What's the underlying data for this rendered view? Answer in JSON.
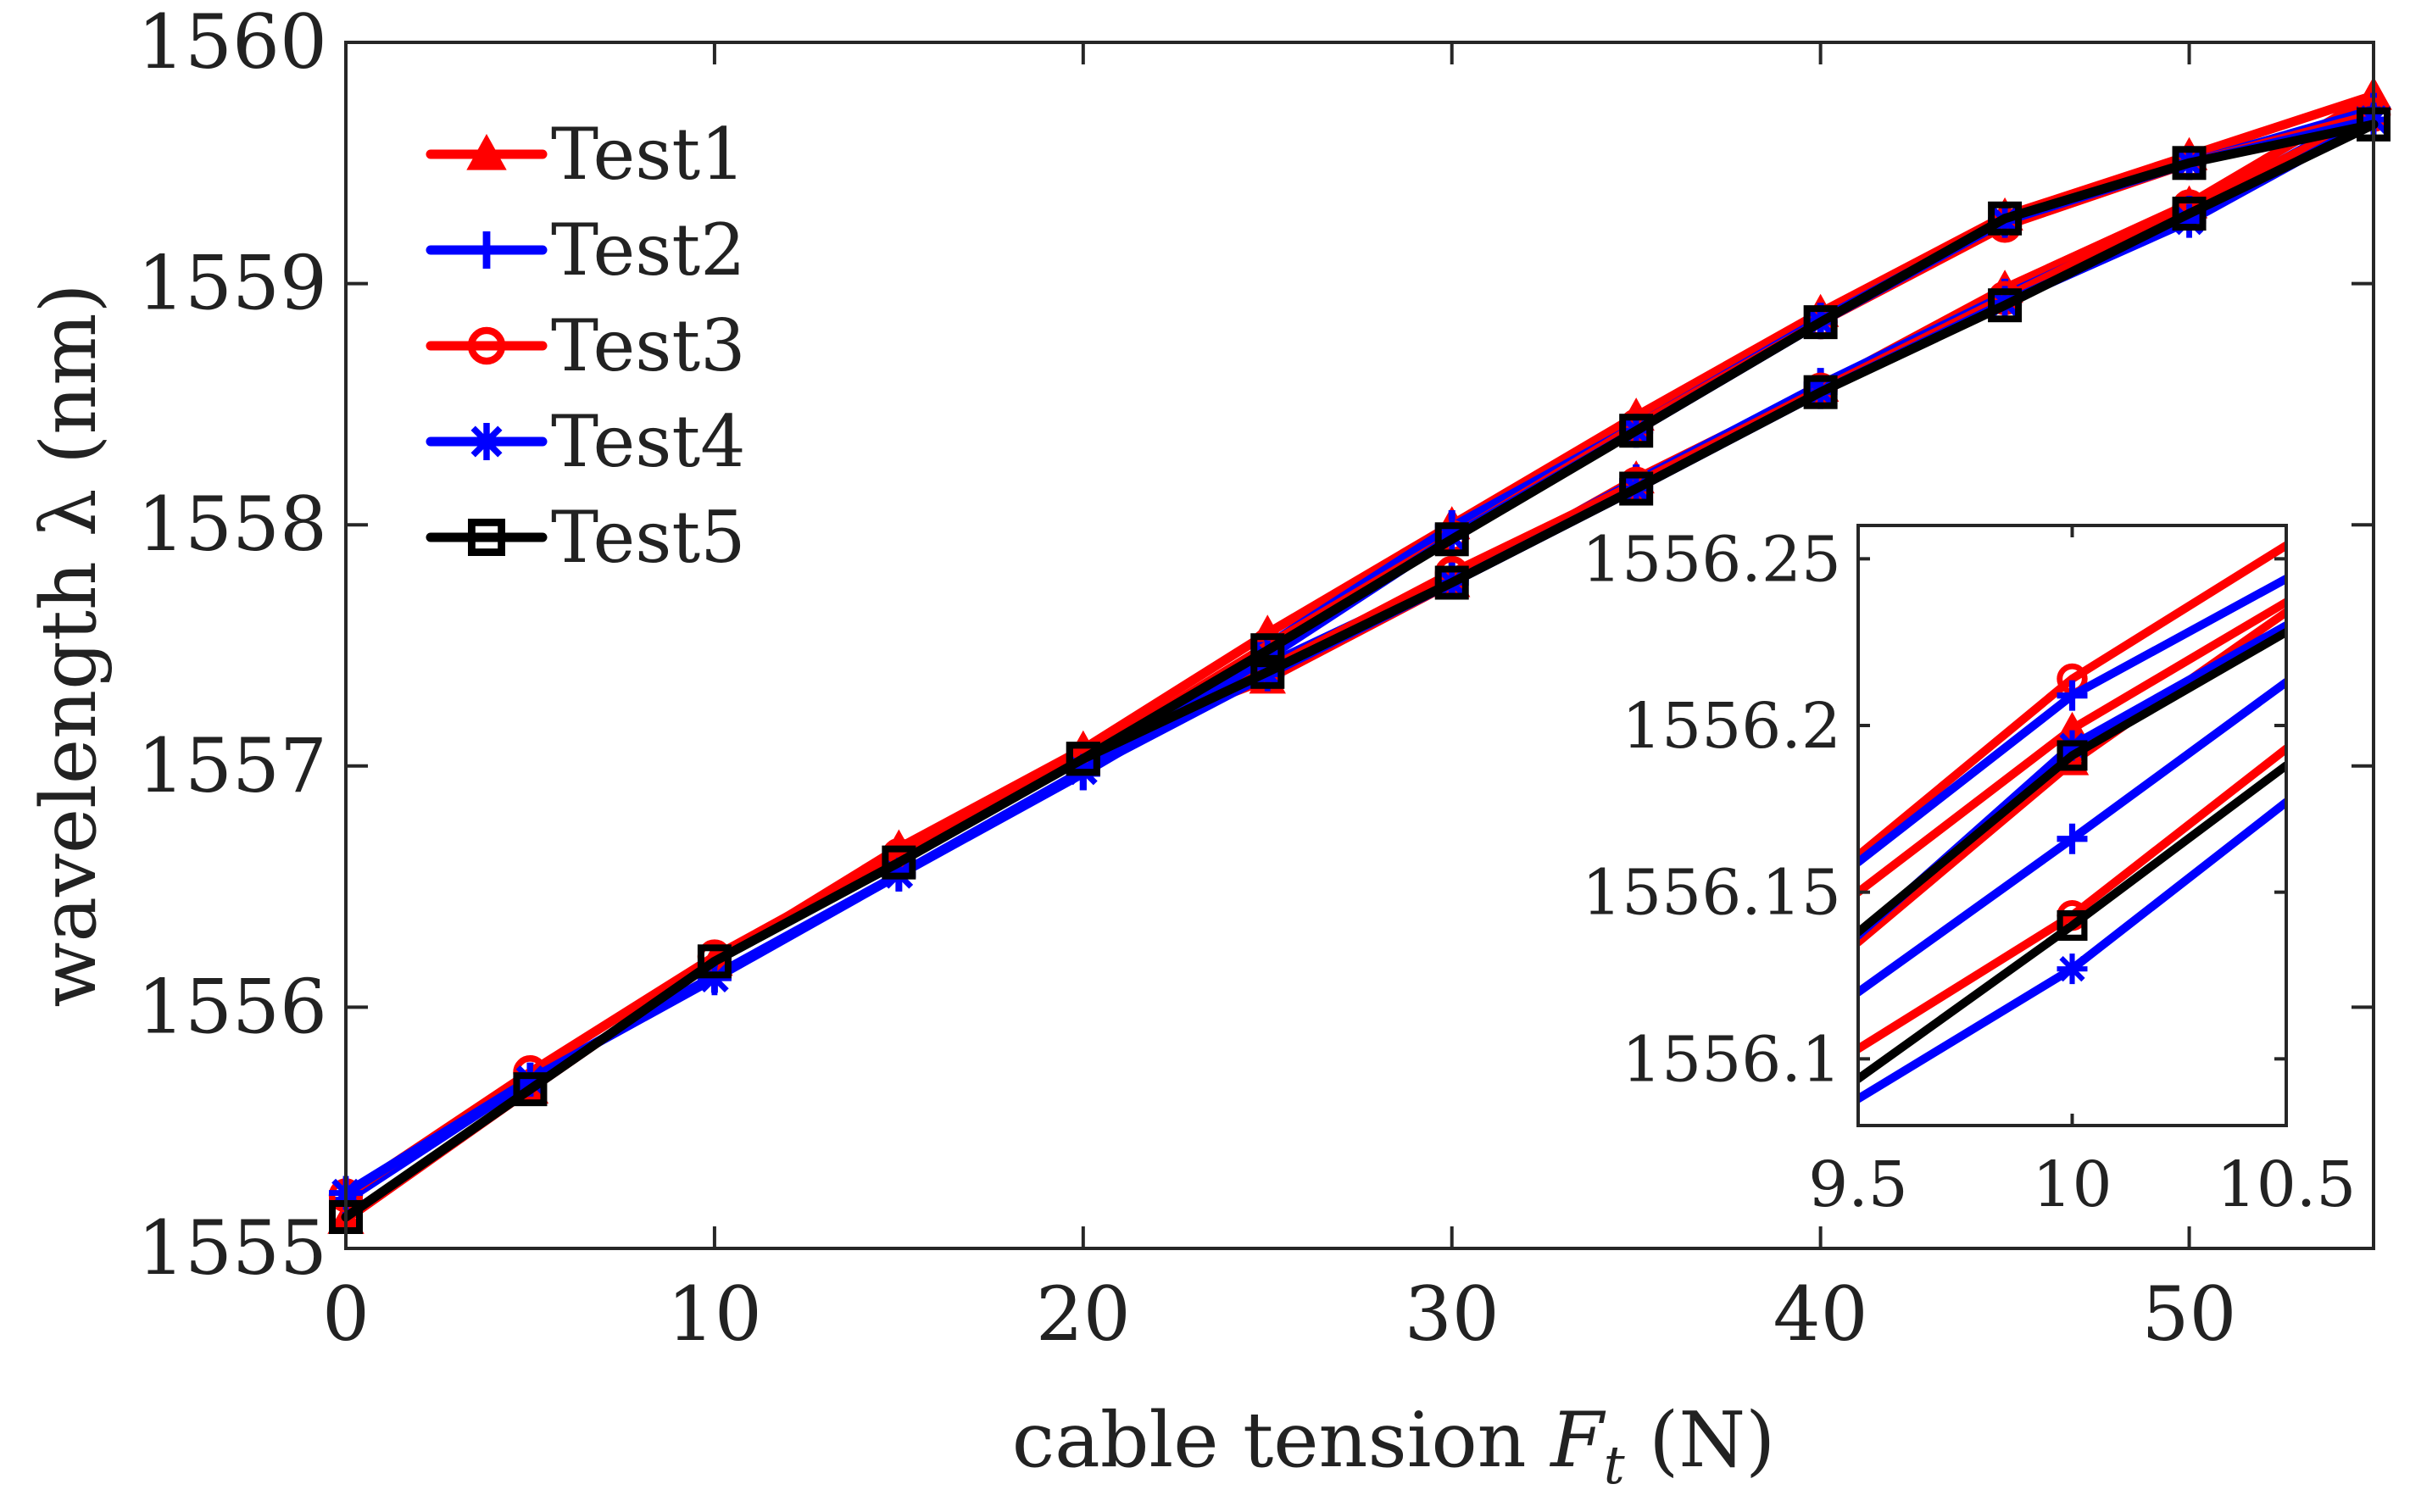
{
  "chart_data": [
    {
      "type": "line",
      "title": "",
      "xlabel": "cable tension F_t (N)",
      "xlabel_parts": {
        "prefix": "cable tension ",
        "var": "F",
        "sub": "t",
        "suffix": " (N)"
      },
      "ylabel": "wavelength λ (nm)",
      "xlim": [
        0,
        55
      ],
      "ylim": [
        1555,
        1560
      ],
      "xticks": [
        0,
        10,
        20,
        30,
        40,
        50
      ],
      "yticks": [
        1555,
        1556,
        1557,
        1558,
        1559,
        1560
      ],
      "legend_position": "top-left",
      "grid": false,
      "series": [
        {
          "name": "Test1",
          "color": "#ff0000",
          "marker": "triangle",
          "loading": {
            "x": [
              0,
              5,
              10,
              15,
              20,
              25,
              30,
              35,
              40,
              45,
              50,
              55
            ],
            "y": [
              1555.12,
              1555.66,
              1556.19,
              1556.66,
              1557.07,
              1557.55,
              1558.0,
              1558.45,
              1558.88,
              1559.28,
              1559.53,
              1559.78
            ]
          },
          "unloading": {
            "x": [
              55,
              50,
              45,
              40,
              35,
              30,
              25,
              20
            ],
            "y": [
              1559.78,
              1559.33,
              1558.98,
              1558.57,
              1558.19,
              1557.76,
              1557.36,
              1557.07
            ]
          }
        },
        {
          "name": "Test2",
          "color": "#0000ff",
          "marker": "plus",
          "loading": {
            "x": [
              0,
              5,
              10,
              15,
              20,
              25,
              30,
              35,
              40,
              45,
              50,
              55
            ],
            "y": [
              1555.2,
              1555.7,
              1556.13,
              1556.55,
              1556.97,
              1557.5,
              1557.99,
              1558.41,
              1558.85,
              1559.26,
              1559.5,
              1559.72
            ]
          },
          "unloading": {
            "x": [
              55,
              50,
              45,
              40,
              35,
              30,
              25,
              20
            ],
            "y": [
              1559.72,
              1559.3,
              1558.95,
              1558.58,
              1558.18,
              1557.78,
              1557.42,
              1556.97
            ]
          }
        },
        {
          "name": "Test3",
          "color": "#ff0000",
          "marker": "circle",
          "loading": {
            "x": [
              0,
              5,
              10,
              15,
              20,
              25,
              30,
              35,
              40,
              45,
              50,
              55
            ],
            "y": [
              1555.22,
              1555.73,
              1556.21,
              1556.63,
              1557.03,
              1557.5,
              1557.95,
              1558.41,
              1558.84,
              1559.24,
              1559.5,
              1559.7
            ]
          },
          "unloading": {
            "x": [
              55,
              50,
              45,
              40,
              35,
              30,
              25,
              20
            ],
            "y": [
              1559.7,
              1559.32,
              1558.94,
              1558.56,
              1558.17,
              1557.8,
              1557.4,
              1557.03
            ]
          }
        },
        {
          "name": "Test4",
          "color": "#0000ff",
          "marker": "asterisk",
          "loading": {
            "x": [
              0,
              5,
              10,
              15,
              20,
              25,
              30,
              35,
              40,
              45,
              50,
              55
            ],
            "y": [
              1555.23,
              1555.7,
              1556.12,
              1556.55,
              1556.98,
              1557.45,
              1557.95,
              1558.39,
              1558.84,
              1559.26,
              1559.5,
              1559.68
            ]
          },
          "unloading": {
            "x": [
              55,
              50,
              45,
              40,
              35,
              30,
              25,
              20
            ],
            "y": [
              1559.68,
              1559.26,
              1558.92,
              1558.55,
              1558.15,
              1557.76,
              1557.38,
              1556.98
            ]
          }
        },
        {
          "name": "Test5",
          "color": "#000000",
          "marker": "square",
          "loading": {
            "x": [
              0,
              5,
              10,
              15,
              20,
              25,
              30,
              35,
              40,
              45,
              50,
              55
            ],
            "y": [
              1555.13,
              1555.66,
              1556.19,
              1556.6,
              1557.03,
              1557.48,
              1557.94,
              1558.39,
              1558.84,
              1559.27,
              1559.5,
              1559.66
            ]
          },
          "unloading": {
            "x": [
              55,
              50,
              45,
              40,
              35,
              30,
              25,
              20
            ],
            "y": [
              1559.66,
              1559.29,
              1558.91,
              1558.55,
              1558.15,
              1557.76,
              1557.39,
              1557.03
            ]
          }
        }
      ]
    },
    {
      "type": "line",
      "title": "",
      "inset_of": "main plot",
      "xlim": [
        9.5,
        10.5
      ],
      "ylim": [
        1556.08,
        1556.26
      ],
      "xticks": [
        9.5,
        10,
        10.5
      ],
      "xtick_labels": [
        "9.5",
        "10",
        "10.5"
      ],
      "yticks": [
        1556.1,
        1556.15,
        1556.2,
        1556.25
      ],
      "ytick_labels": [
        "1556.1",
        "1556.15",
        "1556.2",
        "1556.25"
      ],
      "grid": false,
      "series": [
        {
          "name": "Test3 a",
          "color": "#ff0000",
          "marker": "circle",
          "x": [
            9.5,
            10,
            10.5
          ],
          "y": [
            1556.161,
            1556.214,
            1556.254
          ]
        },
        {
          "name": "Test2 a",
          "color": "#0000ff",
          "marker": "plus",
          "x": [
            9.5,
            10,
            10.5
          ],
          "y": [
            1556.159,
            1556.209,
            1556.244
          ]
        },
        {
          "name": "Test1 a",
          "color": "#ff0000",
          "marker": "triangle",
          "x": [
            9.5,
            10,
            10.5
          ],
          "y": [
            1556.15,
            1556.199,
            1556.237
          ]
        },
        {
          "name": "Test1 b",
          "color": "#ff0000",
          "marker": "triangle",
          "x": [
            9.5,
            10,
            10.5
          ],
          "y": [
            1556.135,
            1556.189,
            1556.234
          ]
        },
        {
          "name": "Test4 a",
          "color": "#0000ff",
          "marker": "asterisk",
          "x": [
            9.5,
            10,
            10.5
          ],
          "y": [
            1556.137,
            1556.194,
            1556.23
          ]
        },
        {
          "name": "Test5 a",
          "color": "#000000",
          "marker": "square",
          "x": [
            9.5,
            10,
            10.5
          ],
          "y": [
            1556.138,
            1556.191,
            1556.228
          ]
        },
        {
          "name": "Test2 b",
          "color": "#0000ff",
          "marker": "plus",
          "x": [
            9.5,
            10,
            10.5
          ],
          "y": [
            1556.12,
            1556.166,
            1556.213
          ]
        },
        {
          "name": "Test3 b",
          "color": "#ff0000",
          "marker": "circle",
          "x": [
            9.5,
            10,
            10.5
          ],
          "y": [
            1556.103,
            1556.143,
            1556.193
          ]
        },
        {
          "name": "Test5 b",
          "color": "#000000",
          "marker": "square",
          "x": [
            9.5,
            10,
            10.5
          ],
          "y": [
            1556.094,
            1556.14,
            1556.188
          ]
        },
        {
          "name": "Test4 b",
          "color": "#0000ff",
          "marker": "asterisk",
          "x": [
            9.5,
            10,
            10.5
          ],
          "y": [
            1556.088,
            1556.127,
            1556.177
          ]
        }
      ]
    }
  ]
}
